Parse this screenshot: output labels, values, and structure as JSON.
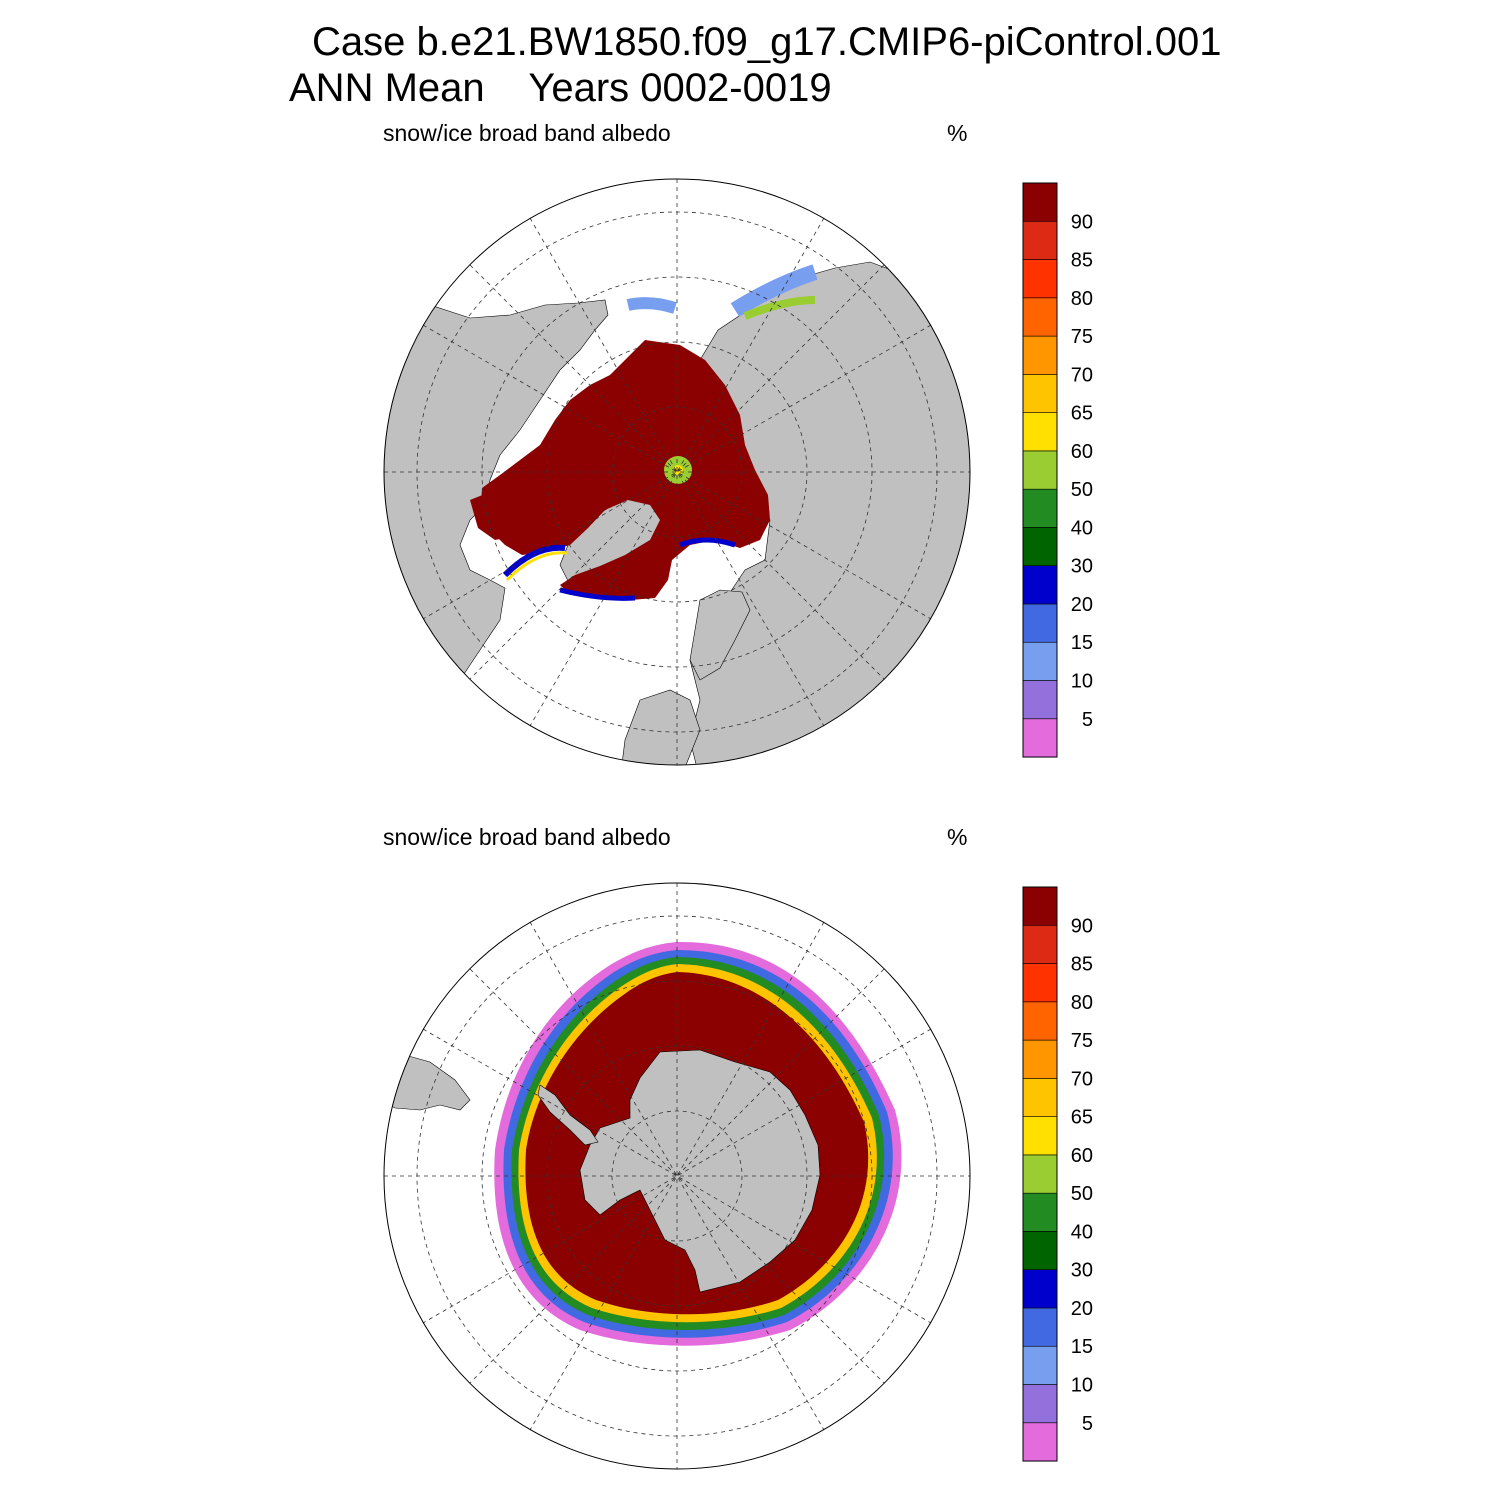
{
  "title": {
    "case_line": "Case b.e21.BW1850.f09_g17.CMIP6-piControl.001",
    "period_line": "ANN Mean    Years 0002-0019"
  },
  "panels": [
    {
      "hemisphere": "north",
      "variable_label": "snow/ice broad band albedo",
      "units": "%"
    },
    {
      "hemisphere": "south",
      "variable_label": "snow/ice broad band albedo",
      "units": "%"
    }
  ],
  "colorbar": {
    "tick_labels": [
      "5",
      "10",
      "15",
      "20",
      "30",
      "40",
      "50",
      "60",
      "65",
      "70",
      "75",
      "80",
      "85",
      "90"
    ],
    "colors_bottom_to_top": [
      "#e36bdc",
      "#9370db",
      "#789ef0",
      "#4169e1",
      "#0000cd",
      "#006400",
      "#228b22",
      "#9acd32",
      "#ffe000",
      "#ffc400",
      "#ff9600",
      "#ff6400",
      "#ff3200",
      "#dc2a14",
      "#8b0000"
    ]
  },
  "map_colors": {
    "land": "#c0c0c0",
    "ocean": "#ffffff",
    "ice_high": "#8b0000",
    "pole_hole": "#9acd32",
    "pole_hole_center": "#ffe000"
  }
}
